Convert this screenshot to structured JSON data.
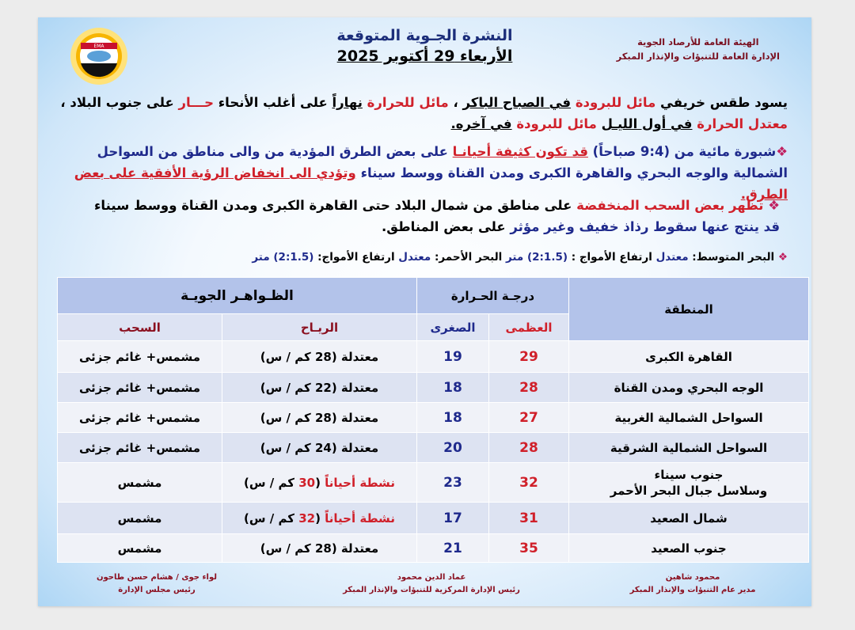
{
  "header": {
    "org_line1": "الهيئة العامة للأرصاد الجوية",
    "org_line2": "الإدارة العامة للتنبؤات والإنذار المبكر",
    "title": "النشرة الجـوية المتوقعة",
    "date": "الأربعاء 29 أكتوبر 2025",
    "logo_text": "EMA"
  },
  "paragraphs": [
    {
      "segments": [
        {
          "text": "يسود طقس خريفي ",
          "style": "black"
        },
        {
          "text": "مائل للبرودة",
          "style": "red"
        },
        {
          "text": " ",
          "style": "black"
        },
        {
          "text": "في الصباح الباكر",
          "style": "black u"
        },
        {
          "text": " ، ",
          "style": "black"
        },
        {
          "text": "مائل للحرارة",
          "style": "red"
        },
        {
          "text": " ",
          "style": "black"
        },
        {
          "text": "نهاراً",
          "style": "black u"
        },
        {
          "text": " على أغلب الأنحاء ",
          "style": "black"
        },
        {
          "text": "حـــار",
          "style": "red"
        },
        {
          "text": " على جنوب البلاد ، ",
          "style": "black"
        },
        {
          "text": "معتدل الحرارة",
          "style": "red"
        },
        {
          "text": " ",
          "style": "black"
        },
        {
          "text": "في أول الليـل",
          "style": "black u"
        },
        {
          "text": " ",
          "style": "black"
        },
        {
          "text": "مائل للبرودة",
          "style": "red"
        },
        {
          "text": " ",
          "style": "black"
        },
        {
          "text": "في آخره.",
          "style": "black u"
        }
      ]
    },
    {
      "segments": [
        {
          "text": "❖",
          "style": "bullet"
        },
        {
          "text": "شبورة مائية من (9:4 صباحاً) ",
          "style": "blue"
        },
        {
          "text": "قد تكون كثيفة أحيانـا",
          "style": "red u"
        },
        {
          "text": " على بعض الطرق المؤدية من والى مناطق من السواحل الشمالية والوجه البحري والقاهرة الكبرى ومدن القناة ووسط سيناء ",
          "style": "blue"
        },
        {
          "text": "وتؤدي الى انخفاض الرؤية الأفقية على بعض الطرق.",
          "style": "red u"
        }
      ]
    },
    {
      "segments": [
        {
          "text": "❖ ",
          "style": "bullet"
        },
        {
          "text": "تظهر بعض السحب المنخفضة",
          "style": "red"
        },
        {
          "text": " على مناطق من شمال البلاد حتى القاهرة الكبرى ومدن القناة ووسط سيناء ",
          "style": "black"
        },
        {
          "text": "قد ينتج عنها سقوط رذاذ خفيف وغير مؤثر",
          "style": "blue"
        },
        {
          "text": " على بعض المناطق.",
          "style": "black"
        }
      ]
    },
    {
      "segments": [
        {
          "text": "❖ ",
          "style": "bullet"
        },
        {
          "text": "البحر المتوسط:  ",
          "style": "black"
        },
        {
          "text": "معتدل",
          "style": "blue"
        },
        {
          "text": "  ارتفاع الأمواج : ",
          "style": "black"
        },
        {
          "text": "(2:1.5) متر",
          "style": "blue"
        },
        {
          "text": "                              البحر الأحمر:  ",
          "style": "black"
        },
        {
          "text": "معتدل",
          "style": "blue"
        },
        {
          "text": "    ارتفاع الأمواج: ",
          "style": "black"
        },
        {
          "text": "(2:1.5) متر",
          "style": "blue"
        }
      ]
    }
  ],
  "table": {
    "headers": {
      "region": "المنطقة",
      "temperature": "درجـة الحـرارة",
      "phenomena": "الظـواهـر الجويـة",
      "max": "العظمى",
      "min": "الصغرى",
      "wind": "الريـاح",
      "clouds": "السحب"
    },
    "rows": [
      {
        "region": "القاهرة الكبرى",
        "max": "29",
        "min": "19",
        "wind": [
          {
            "text": "معتدلة (28 كم / س)",
            "style": "black"
          }
        ],
        "clouds": "مشمس+ غائم جزئى"
      },
      {
        "region": "الوجه البحري ومدن القناة",
        "max": "28",
        "min": "18",
        "wind": [
          {
            "text": "معتدلة (22 كم / س)",
            "style": "black"
          }
        ],
        "clouds": "مشمس+ غائم جزئى"
      },
      {
        "region": "السواحل الشمالية الغربية",
        "max": "27",
        "min": "18",
        "wind": [
          {
            "text": "معتدلة (28 كم / س)",
            "style": "black"
          }
        ],
        "clouds": "مشمس+ غائم جزئى"
      },
      {
        "region": "السواحل الشمالية الشرقية",
        "max": "28",
        "min": "20",
        "wind": [
          {
            "text": "معتدلة (24 كم / س)",
            "style": "black"
          }
        ],
        "clouds": "مشمس+ غائم جزئى"
      },
      {
        "region": "جنوب سيناء\nوسلاسل جبال البحر الأحمر",
        "max": "32",
        "min": "23",
        "wind": [
          {
            "text": "نشطة أحياناً",
            "style": "red"
          },
          {
            "text": " (",
            "style": "black"
          },
          {
            "text": "30",
            "style": "red"
          },
          {
            "text": " كم / س)",
            "style": "black"
          }
        ],
        "clouds": "مشمس"
      },
      {
        "region": "شمال الصعيد",
        "max": "31",
        "min": "17",
        "wind": [
          {
            "text": "نشطة أحياناً",
            "style": "red"
          },
          {
            "text": " (",
            "style": "black"
          },
          {
            "text": "32",
            "style": "red"
          },
          {
            "text": " كم / س)",
            "style": "black"
          }
        ],
        "clouds": "مشمس"
      },
      {
        "region": "جنوب الصعيد",
        "max": "35",
        "min": "21",
        "wind": [
          {
            "text": "معتدلة (28 كم / س)",
            "style": "black"
          }
        ],
        "clouds": "مشمس"
      }
    ]
  },
  "signatures": [
    {
      "name": "محمود شاهين",
      "title": "مدير عام التنبؤات والإنذار المبكر"
    },
    {
      "name": "عماد الدين محمود",
      "title": "رئيس الإدارة المركزية للتنبؤات والإنذار المبكر"
    },
    {
      "name": "لواء جوى / هشام حسن طاحون",
      "title": "رئيس مجلس الإدارة"
    }
  ],
  "colors": {
    "red": "#d0202a",
    "blue": "#1f2a8c",
    "title": "#1c2e7a",
    "header_bg": "#b3c3ea"
  }
}
